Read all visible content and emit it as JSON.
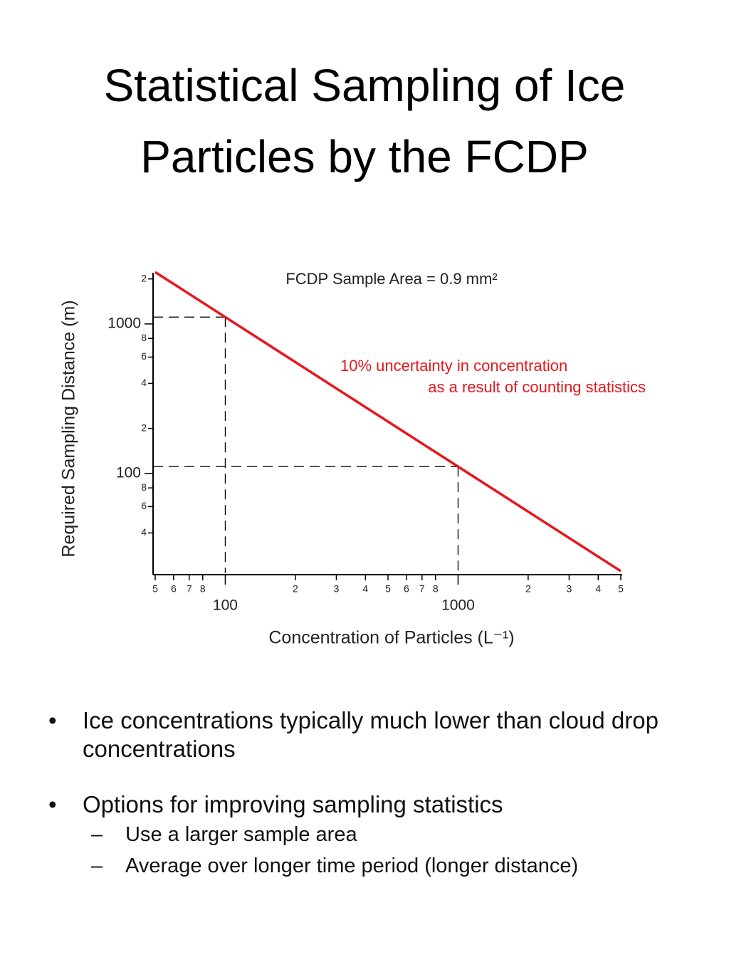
{
  "title": "Statistical Sampling of Ice Particles by the FCDP",
  "chart_data": {
    "type": "line",
    "title": "FCDP Sample Area = 0.9 mm²",
    "xlabel": "Concentration of Particles (L⁻¹)",
    "ylabel": "Required Sampling Distance (m)",
    "annotations": [
      "10% uncertainty in concentration",
      "as a result of counting statistics"
    ],
    "annotation_color": "#e8161b",
    "x": [
      50,
      100,
      1000,
      5000
    ],
    "values": [
      2222,
      1111,
      111.1,
      22.2
    ],
    "color": "#e8161b",
    "xscale": "log",
    "yscale": "log",
    "drop_lines": true,
    "xlim": [
      50,
      5000
    ],
    "ylim": [
      21.5,
      2200
    ],
    "xticks": [
      {
        "value": 50,
        "label": "5"
      },
      {
        "value": 60,
        "label": "6"
      },
      {
        "value": 70,
        "label": "7"
      },
      {
        "value": 80,
        "label": "8"
      },
      100,
      {
        "value": 200,
        "label": "2"
      },
      {
        "value": 300,
        "label": "3"
      },
      {
        "value": 400,
        "label": "4"
      },
      {
        "value": 500,
        "label": "5"
      },
      {
        "value": 600,
        "label": "6"
      },
      {
        "value": 700,
        "label": "7"
      },
      {
        "value": 800,
        "label": "8"
      },
      1000,
      {
        "value": 2000,
        "label": "2"
      },
      {
        "value": 3000,
        "label": "3"
      },
      {
        "value": 4000,
        "label": "4"
      },
      {
        "value": 5000,
        "label": "5"
      }
    ],
    "yticks": [
      {
        "value": 40,
        "label": "4"
      },
      {
        "value": 60,
        "label": "6"
      },
      {
        "value": 80,
        "label": "8"
      },
      100,
      {
        "value": 200,
        "label": "2"
      },
      {
        "value": 400,
        "label": "4"
      },
      {
        "value": 600,
        "label": "6"
      },
      {
        "value": 800,
        "label": "8"
      },
      1000,
      {
        "value": 2000,
        "label": "2"
      }
    ]
  },
  "bullets": [
    {
      "text": "Ice concentrations typically much lower than cloud drop concentrations",
      "sub": []
    },
    {
      "text": "Options for improving sampling statistics",
      "sub": [
        "Use a larger sample area",
        "Average over longer time period (longer distance)"
      ]
    }
  ]
}
